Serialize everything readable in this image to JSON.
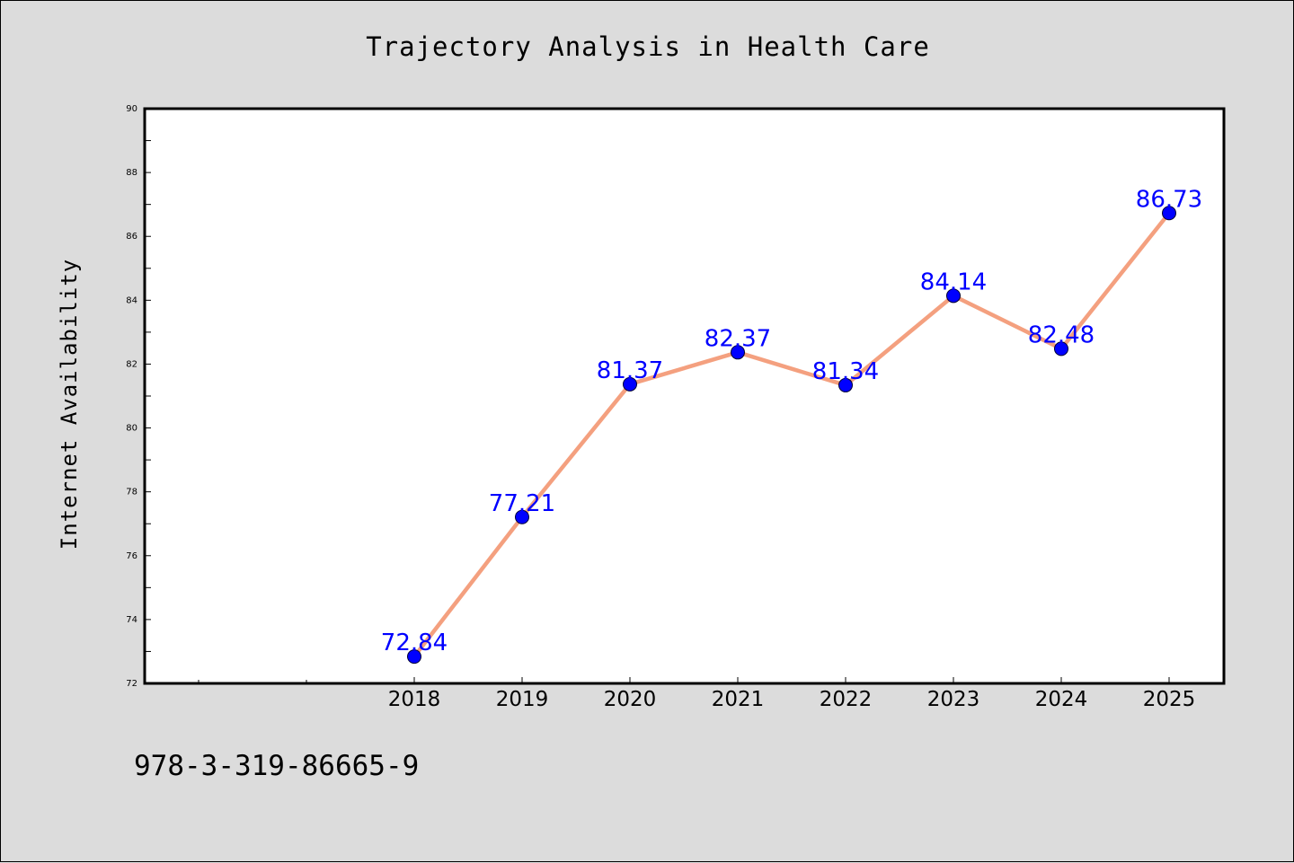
{
  "figure": {
    "footer_code": "978-3-319-86665-9",
    "background_color": "#dcdcdc"
  },
  "chart_data": {
    "type": "line",
    "title": "Trajectory Analysis in Health Care",
    "xlabel": "",
    "ylabel": "Internet Availability",
    "x": [
      "2018",
      "2019",
      "2020",
      "2021",
      "2022",
      "2023",
      "2024",
      "2025"
    ],
    "series": [
      {
        "values": [
          72.84,
          77.21,
          81.37,
          82.37,
          81.34,
          84.14,
          82.48,
          86.73
        ],
        "data_labels": [
          "72.84",
          "77.21",
          "81.37",
          "82.37",
          "81.34",
          "84.14",
          "82.48",
          "86.73"
        ],
        "line_color": "#f4a07f",
        "marker_color": "#0000ff",
        "label_color": "#0000ff"
      }
    ],
    "ylim": [
      72,
      90
    ],
    "y_ticks": [
      72,
      74,
      76,
      78,
      80,
      82,
      84,
      86,
      88,
      90
    ],
    "y_tick_labels": [
      "72",
      "74",
      "76",
      "78",
      "80",
      "82",
      "84",
      "86",
      "88",
      "90"
    ],
    "grid": false,
    "legend": "none"
  }
}
